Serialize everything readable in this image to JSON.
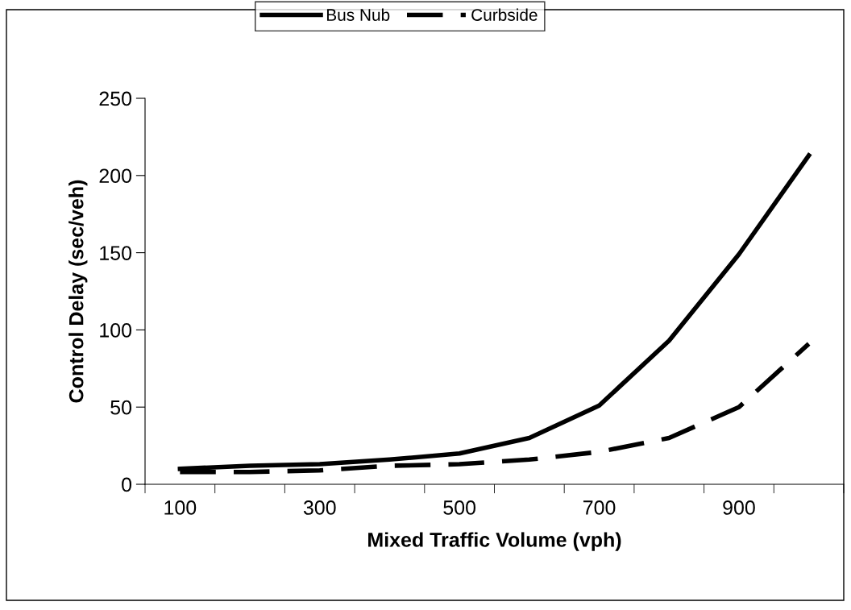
{
  "chart_data": {
    "type": "line",
    "xlabel": "Mixed Traffic Volume (vph)",
    "ylabel": "Control Delay (sec/veh)",
    "categories": [
      "100",
      null,
      "300",
      null,
      "500",
      null,
      "700",
      null,
      "900",
      null
    ],
    "series": [
      {
        "name": "Bus Nub",
        "color": "#000000",
        "line_style": "solid",
        "values": [
          10,
          12,
          13,
          16,
          20,
          30,
          51,
          93,
          149,
          213
        ]
      },
      {
        "name": "Curbside",
        "color": "#000000",
        "line_style": "dashed",
        "values": [
          8,
          8,
          9,
          12,
          13,
          16,
          21,
          30,
          50,
          91
        ]
      }
    ],
    "ylim": [
      0,
      250
    ],
    "yticks": [
      0,
      50,
      100,
      150,
      200,
      250
    ],
    "grid": false,
    "legend": "top",
    "marker": "none"
  }
}
